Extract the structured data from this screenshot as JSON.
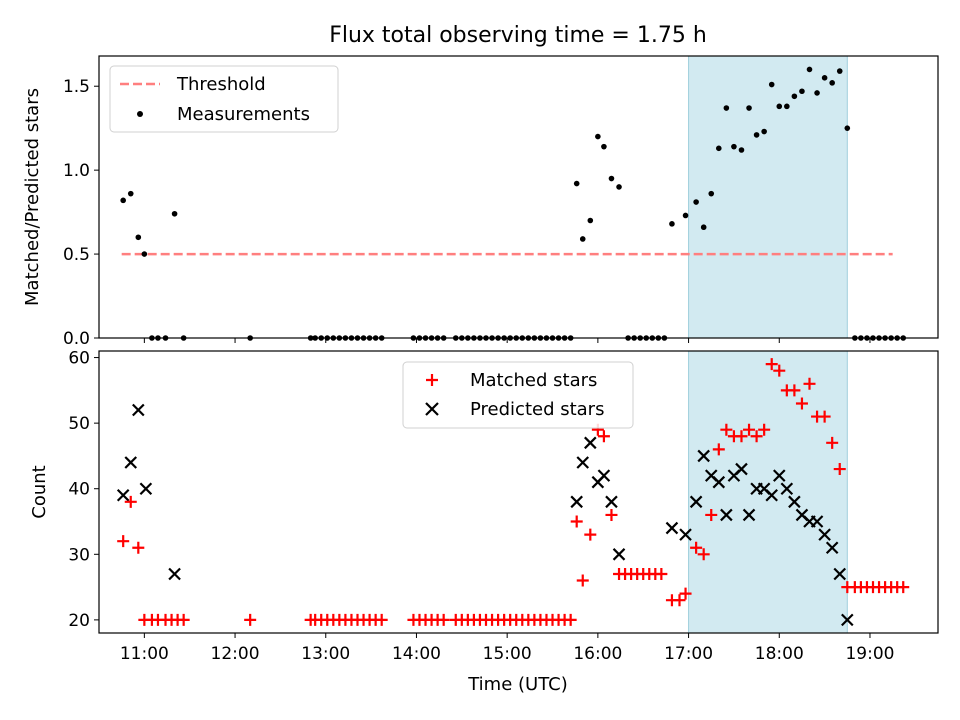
{
  "chart_data": [
    {
      "type": "scatter",
      "title": "Flux total observing time = 1.75 h",
      "xlabel": "",
      "ylabel": "Matched/Predicted stars",
      "xlim": [
        "10:30",
        "19:45"
      ],
      "ylim": [
        0,
        1.68
      ],
      "yticks": [
        0.0,
        0.5,
        1.0,
        1.5
      ],
      "ytick_labels": [
        "0.0",
        "0.5",
        "1.0",
        "1.5"
      ],
      "grid": false,
      "legend": {
        "position": "top-left",
        "entries": [
          "Threshold",
          "Measurements"
        ]
      },
      "shaded_interval": {
        "start": "17:00",
        "end": "18:45",
        "color": "#add8e6"
      },
      "threshold": {
        "name": "Threshold",
        "value": 0.5,
        "x_start": "10:45",
        "x_end": "19:15",
        "color": "#ff7f7f"
      },
      "series": [
        {
          "name": "Measurements",
          "color": "#000000",
          "marker": "dot",
          "points": [
            [
              "10:46",
              0.82
            ],
            [
              "10:51",
              0.86
            ],
            [
              "10:56",
              0.6
            ],
            [
              "11:00",
              0.5
            ],
            [
              "11:05",
              0.0
            ],
            [
              "11:09",
              0.0
            ],
            [
              "11:14",
              0.0
            ],
            [
              "11:20",
              0.74
            ],
            [
              "11:26",
              0.0
            ],
            [
              "12:10",
              0.0
            ],
            [
              "12:50",
              0.0
            ],
            [
              "12:53",
              0.0
            ],
            [
              "12:57",
              0.0
            ],
            [
              "13:01",
              0.0
            ],
            [
              "13:05",
              0.0
            ],
            [
              "13:09",
              0.0
            ],
            [
              "13:13",
              0.0
            ],
            [
              "13:17",
              0.0
            ],
            [
              "13:21",
              0.0
            ],
            [
              "13:25",
              0.0
            ],
            [
              "13:29",
              0.0
            ],
            [
              "13:33",
              0.0
            ],
            [
              "13:37",
              0.0
            ],
            [
              "13:58",
              0.0
            ],
            [
              "14:02",
              0.0
            ],
            [
              "14:06",
              0.0
            ],
            [
              "14:10",
              0.0
            ],
            [
              "14:14",
              0.0
            ],
            [
              "14:18",
              0.0
            ],
            [
              "14:26",
              0.0
            ],
            [
              "14:30",
              0.0
            ],
            [
              "14:34",
              0.0
            ],
            [
              "14:38",
              0.0
            ],
            [
              "14:42",
              0.0
            ],
            [
              "14:46",
              0.0
            ],
            [
              "14:50",
              0.0
            ],
            [
              "14:54",
              0.0
            ],
            [
              "14:58",
              0.0
            ],
            [
              "15:02",
              0.0
            ],
            [
              "15:06",
              0.0
            ],
            [
              "15:10",
              0.0
            ],
            [
              "15:14",
              0.0
            ],
            [
              "15:18",
              0.0
            ],
            [
              "15:22",
              0.0
            ],
            [
              "15:26",
              0.0
            ],
            [
              "15:30",
              0.0
            ],
            [
              "15:34",
              0.0
            ],
            [
              "15:38",
              0.0
            ],
            [
              "15:42",
              0.0
            ],
            [
              "15:46",
              0.92
            ],
            [
              "15:50",
              0.59
            ],
            [
              "15:55",
              0.7
            ],
            [
              "16:00",
              1.2
            ],
            [
              "16:04",
              1.14
            ],
            [
              "16:09",
              0.95
            ],
            [
              "16:14",
              0.9
            ],
            [
              "16:20",
              0.0
            ],
            [
              "16:24",
              0.0
            ],
            [
              "16:28",
              0.0
            ],
            [
              "16:32",
              0.0
            ],
            [
              "16:36",
              0.0
            ],
            [
              "16:40",
              0.0
            ],
            [
              "16:44",
              0.0
            ],
            [
              "16:49",
              0.68
            ],
            [
              "16:58",
              0.73
            ],
            [
              "17:05",
              0.81
            ],
            [
              "17:10",
              0.66
            ],
            [
              "17:15",
              0.86
            ],
            [
              "17:20",
              1.13
            ],
            [
              "17:25",
              1.37
            ],
            [
              "17:30",
              1.14
            ],
            [
              "17:35",
              1.12
            ],
            [
              "17:40",
              1.37
            ],
            [
              "17:45",
              1.21
            ],
            [
              "17:50",
              1.23
            ],
            [
              "17:55",
              1.51
            ],
            [
              "18:00",
              1.38
            ],
            [
              "18:05",
              1.38
            ],
            [
              "18:10",
              1.44
            ],
            [
              "18:15",
              1.47
            ],
            [
              "18:20",
              1.6
            ],
            [
              "18:25",
              1.46
            ],
            [
              "18:30",
              1.55
            ],
            [
              "18:35",
              1.52
            ],
            [
              "18:40",
              1.59
            ],
            [
              "18:45",
              1.25
            ],
            [
              "18:50",
              0.0
            ],
            [
              "18:54",
              0.0
            ],
            [
              "18:58",
              0.0
            ],
            [
              "19:02",
              0.0
            ],
            [
              "19:06",
              0.0
            ],
            [
              "19:10",
              0.0
            ],
            [
              "19:14",
              0.0
            ],
            [
              "19:18",
              0.0
            ],
            [
              "19:22",
              0.0
            ]
          ]
        }
      ]
    },
    {
      "type": "scatter",
      "title": "",
      "xlabel": "Time (UTC)",
      "ylabel": "Count",
      "xlim": [
        "10:30",
        "19:45"
      ],
      "ylim": [
        18,
        61
      ],
      "yticks": [
        20,
        30,
        40,
        50,
        60
      ],
      "ytick_labels": [
        "20",
        "30",
        "40",
        "50",
        "60"
      ],
      "xticks": [
        "11:00",
        "12:00",
        "13:00",
        "14:00",
        "15:00",
        "16:00",
        "17:00",
        "18:00",
        "19:00"
      ],
      "grid": false,
      "legend": {
        "position": "top-center",
        "entries": [
          "Matched stars",
          "Predicted stars"
        ]
      },
      "shaded_interval": {
        "start": "17:00",
        "end": "18:45",
        "color": "#add8e6"
      },
      "series": [
        {
          "name": "Matched stars",
          "color": "#ff0000",
          "marker": "plus",
          "points": [
            [
              "10:46",
              32
            ],
            [
              "10:51",
              38
            ],
            [
              "10:56",
              31
            ],
            [
              "11:00",
              20
            ],
            [
              "11:05",
              20
            ],
            [
              "11:09",
              20
            ],
            [
              "11:14",
              20
            ],
            [
              "11:18",
              20
            ],
            [
              "11:22",
              20
            ],
            [
              "11:26",
              20
            ],
            [
              "12:10",
              20
            ],
            [
              "12:50",
              20
            ],
            [
              "12:53",
              20
            ],
            [
              "12:57",
              20
            ],
            [
              "13:01",
              20
            ],
            [
              "13:05",
              20
            ],
            [
              "13:09",
              20
            ],
            [
              "13:13",
              20
            ],
            [
              "13:17",
              20
            ],
            [
              "13:21",
              20
            ],
            [
              "13:25",
              20
            ],
            [
              "13:29",
              20
            ],
            [
              "13:33",
              20
            ],
            [
              "13:37",
              20
            ],
            [
              "13:58",
              20
            ],
            [
              "14:02",
              20
            ],
            [
              "14:06",
              20
            ],
            [
              "14:10",
              20
            ],
            [
              "14:14",
              20
            ],
            [
              "14:18",
              20
            ],
            [
              "14:26",
              20
            ],
            [
              "14:30",
              20
            ],
            [
              "14:34",
              20
            ],
            [
              "14:38",
              20
            ],
            [
              "14:42",
              20
            ],
            [
              "14:46",
              20
            ],
            [
              "14:50",
              20
            ],
            [
              "14:54",
              20
            ],
            [
              "14:58",
              20
            ],
            [
              "15:02",
              20
            ],
            [
              "15:06",
              20
            ],
            [
              "15:10",
              20
            ],
            [
              "15:14",
              20
            ],
            [
              "15:18",
              20
            ],
            [
              "15:22",
              20
            ],
            [
              "15:26",
              20
            ],
            [
              "15:30",
              20
            ],
            [
              "15:34",
              20
            ],
            [
              "15:38",
              20
            ],
            [
              "15:42",
              20
            ],
            [
              "15:46",
              35
            ],
            [
              "15:50",
              26
            ],
            [
              "15:55",
              33
            ],
            [
              "16:00",
              49
            ],
            [
              "16:04",
              48
            ],
            [
              "16:09",
              36
            ],
            [
              "16:14",
              27
            ],
            [
              "16:18",
              27
            ],
            [
              "16:22",
              27
            ],
            [
              "16:26",
              27
            ],
            [
              "16:30",
              27
            ],
            [
              "16:34",
              27
            ],
            [
              "16:38",
              27
            ],
            [
              "16:42",
              27
            ],
            [
              "16:49",
              23
            ],
            [
              "16:54",
              23
            ],
            [
              "16:58",
              24
            ],
            [
              "17:05",
              31
            ],
            [
              "17:10",
              30
            ],
            [
              "17:15",
              36
            ],
            [
              "17:20",
              46
            ],
            [
              "17:25",
              49
            ],
            [
              "17:30",
              48
            ],
            [
              "17:35",
              48
            ],
            [
              "17:40",
              49
            ],
            [
              "17:45",
              48
            ],
            [
              "17:50",
              49
            ],
            [
              "17:55",
              59
            ],
            [
              "18:00",
              58
            ],
            [
              "18:05",
              55
            ],
            [
              "18:10",
              55
            ],
            [
              "18:15",
              53
            ],
            [
              "18:20",
              56
            ],
            [
              "18:25",
              51
            ],
            [
              "18:30",
              51
            ],
            [
              "18:35",
              47
            ],
            [
              "18:40",
              43
            ],
            [
              "18:45",
              25
            ],
            [
              "18:50",
              25
            ],
            [
              "18:54",
              25
            ],
            [
              "18:58",
              25
            ],
            [
              "19:02",
              25
            ],
            [
              "19:06",
              25
            ],
            [
              "19:10",
              25
            ],
            [
              "19:14",
              25
            ],
            [
              "19:18",
              25
            ],
            [
              "19:22",
              25
            ]
          ]
        },
        {
          "name": "Predicted stars",
          "color": "#000000",
          "marker": "x",
          "points": [
            [
              "10:46",
              39
            ],
            [
              "10:51",
              44
            ],
            [
              "10:56",
              52
            ],
            [
              "11:01",
              40
            ],
            [
              "11:20",
              27
            ],
            [
              "15:46",
              38
            ],
            [
              "15:50",
              44
            ],
            [
              "15:55",
              47
            ],
            [
              "16:00",
              41
            ],
            [
              "16:04",
              42
            ],
            [
              "16:09",
              38
            ],
            [
              "16:14",
              30
            ],
            [
              "16:49",
              34
            ],
            [
              "16:58",
              33
            ],
            [
              "17:05",
              38
            ],
            [
              "17:10",
              45
            ],
            [
              "17:15",
              42
            ],
            [
              "17:20",
              41
            ],
            [
              "17:25",
              36
            ],
            [
              "17:30",
              42
            ],
            [
              "17:35",
              43
            ],
            [
              "17:40",
              36
            ],
            [
              "17:45",
              40
            ],
            [
              "17:50",
              40
            ],
            [
              "17:55",
              39
            ],
            [
              "18:00",
              42
            ],
            [
              "18:05",
              40
            ],
            [
              "18:10",
              38
            ],
            [
              "18:15",
              36
            ],
            [
              "18:20",
              35
            ],
            [
              "18:25",
              35
            ],
            [
              "18:30",
              33
            ],
            [
              "18:35",
              31
            ],
            [
              "18:40",
              27
            ],
            [
              "18:45",
              20
            ]
          ]
        }
      ]
    }
  ]
}
